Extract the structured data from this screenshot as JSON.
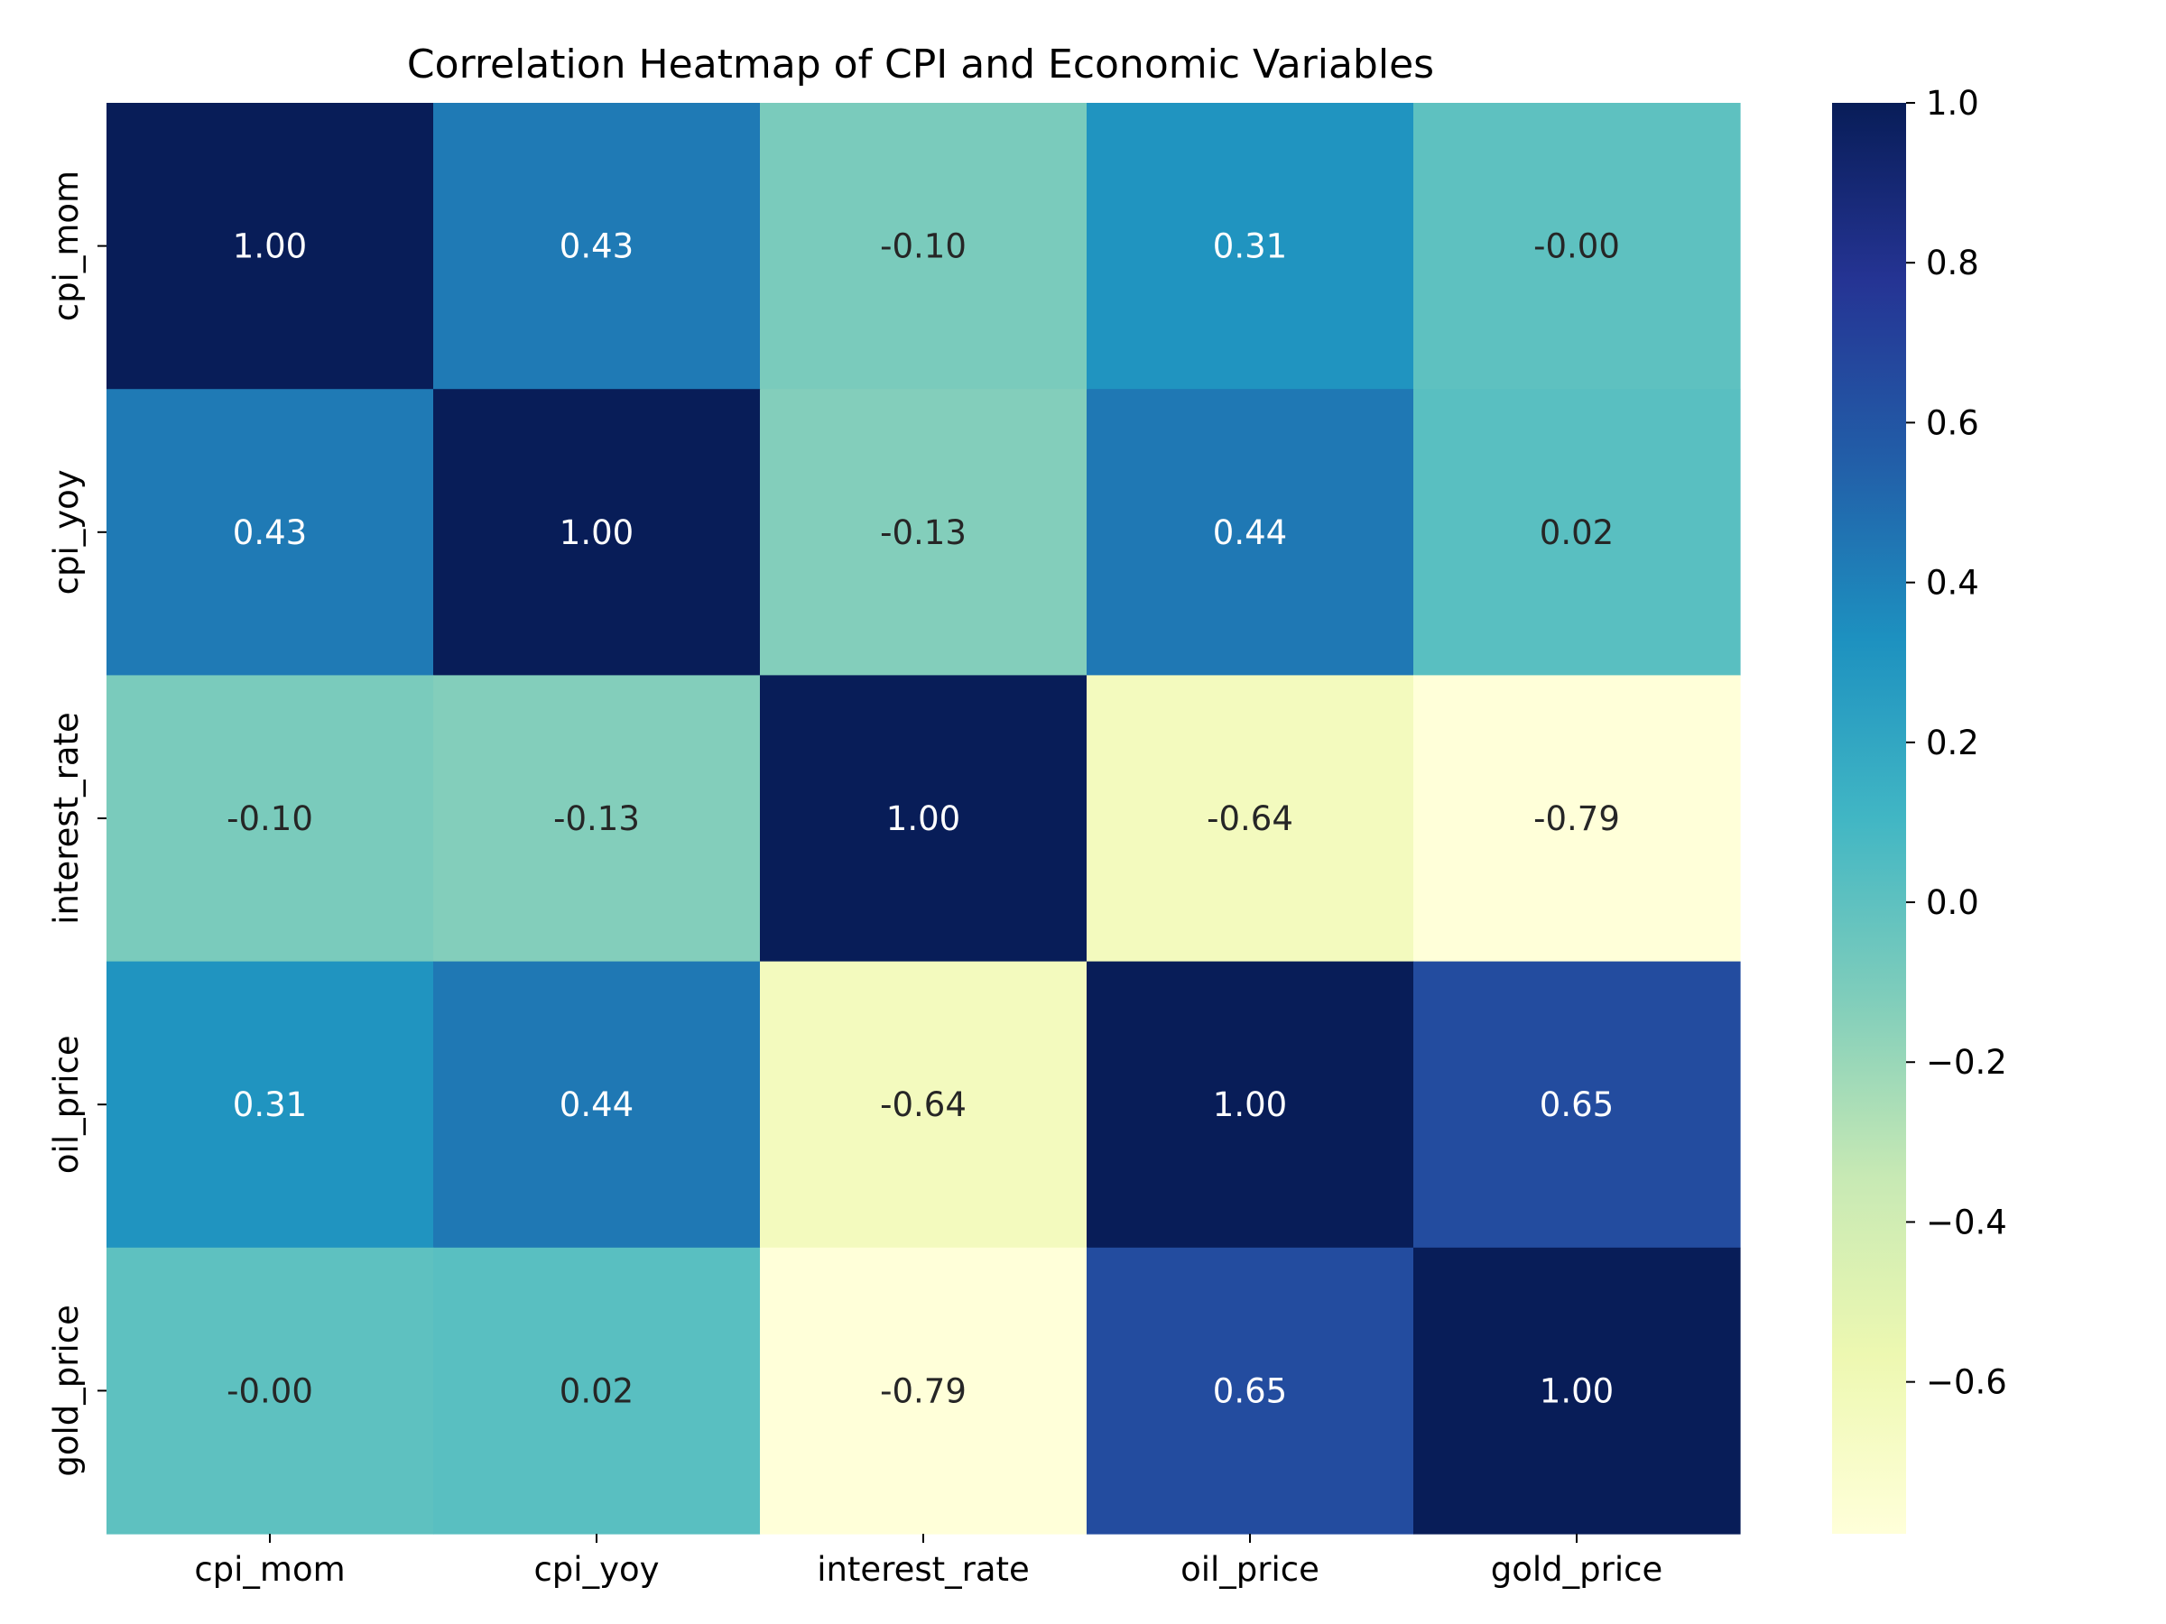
{
  "chart_data": {
    "type": "heatmap",
    "title": "Correlation Heatmap of CPI and Economic Variables",
    "x_labels": [
      "cpi_mom",
      "cpi_yoy",
      "interest_rate",
      "oil_price",
      "gold_price"
    ],
    "y_labels": [
      "cpi_mom",
      "cpi_yoy",
      "interest_rate",
      "oil_price",
      "gold_price"
    ],
    "values": [
      [
        1.0,
        0.43,
        -0.1,
        0.31,
        -0.0
      ],
      [
        0.43,
        1.0,
        -0.13,
        0.44,
        0.02
      ],
      [
        -0.1,
        -0.13,
        1.0,
        -0.64,
        -0.79
      ],
      [
        0.31,
        0.44,
        -0.64,
        1.0,
        0.65
      ],
      [
        -0.0,
        0.02,
        -0.79,
        0.65,
        1.0
      ]
    ],
    "annotations": [
      [
        "1.00",
        "0.43",
        "-0.10",
        "0.31",
        "-0.00"
      ],
      [
        "0.43",
        "1.00",
        "-0.13",
        "0.44",
        "0.02"
      ],
      [
        "-0.10",
        "-0.13",
        "1.00",
        "-0.64",
        "-0.79"
      ],
      [
        "0.31",
        "0.44",
        "-0.64",
        "1.00",
        "0.65"
      ],
      [
        "-0.00",
        "0.02",
        "-0.79",
        "0.65",
        "1.00"
      ]
    ],
    "colormap": "YlGnBu",
    "color_range": [
      -0.79,
      1.0
    ],
    "colorbar_ticks": [
      "1.0",
      "0.8",
      "0.6",
      "0.4",
      "0.2",
      "0.0",
      "−0.2",
      "−0.4",
      "−0.6"
    ],
    "colorbar_tick_values": [
      1.0,
      0.8,
      0.6,
      0.4,
      0.2,
      0.0,
      -0.2,
      -0.4,
      -0.6
    ],
    "colorbar_stops": [
      "#ffffd9",
      "#edf8b1",
      "#c7e9b4",
      "#7fcdbb",
      "#41b6c4",
      "#1d91c0",
      "#225ea8",
      "#253494",
      "#081d58"
    ]
  }
}
